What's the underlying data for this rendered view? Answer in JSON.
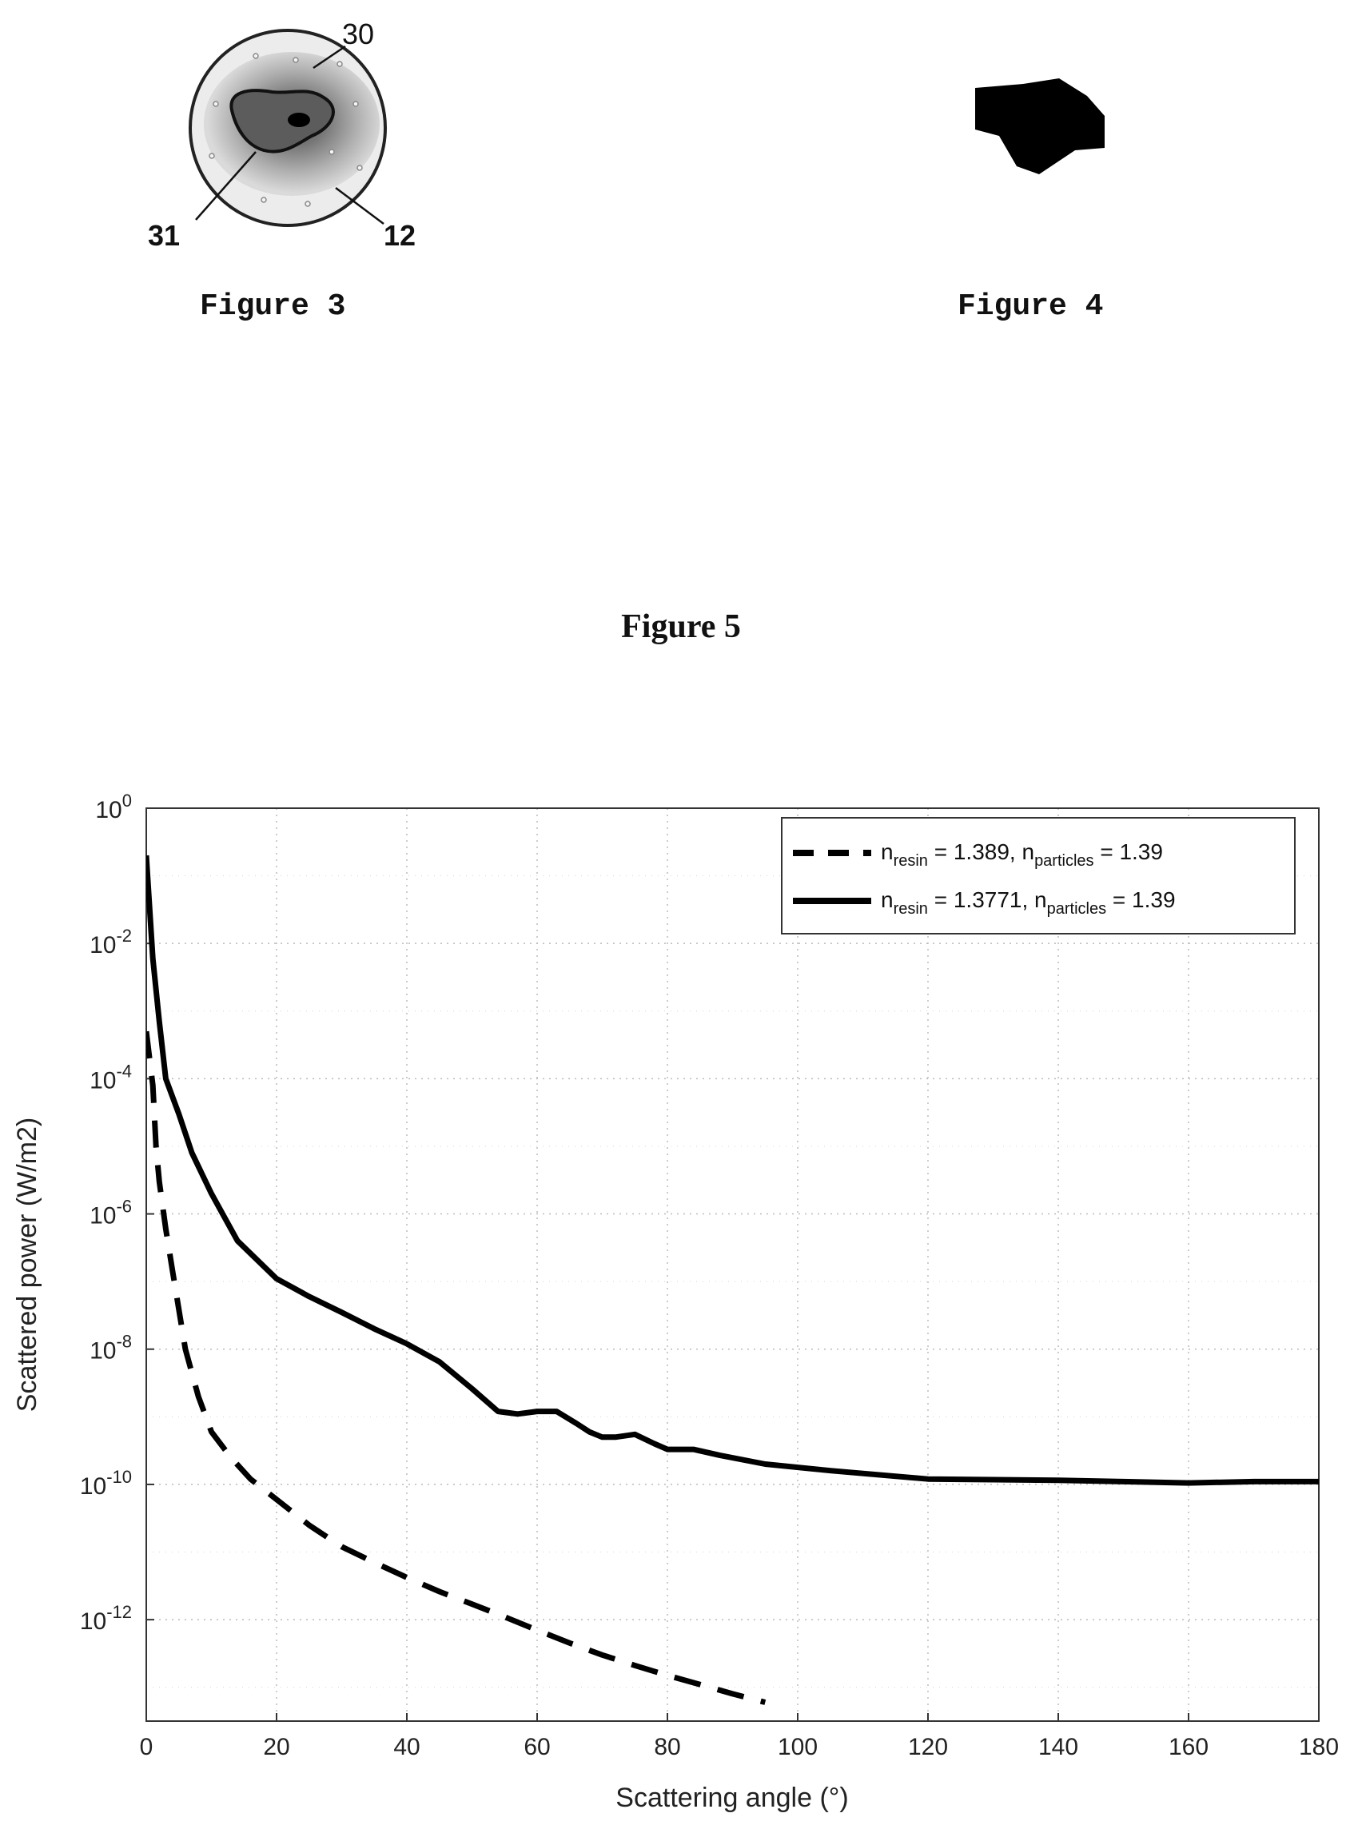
{
  "figure3": {
    "caption": "Figure 3",
    "labels": {
      "ref_30": "30",
      "ref_31": "31",
      "ref_12": "12"
    }
  },
  "figure4": {
    "caption": "Figure 4"
  },
  "figure5": {
    "title": "Figure 5",
    "legend": [
      {
        "base1": "n",
        "sub1": "resin",
        "mid": " = 1.389, ",
        "base2": "n",
        "sub2": "particles",
        "tail": " = 1.39",
        "style": "dashed"
      },
      {
        "base1": "n",
        "sub1": "resin",
        "mid": " = 1.3771, ",
        "base2": "n",
        "sub2": "particles",
        "tail": " = 1.39",
        "style": "solid"
      }
    ]
  },
  "chart_data": {
    "type": "line",
    "title": "",
    "xlabel": "Scattering angle (°)",
    "ylabel": "Scattered power (W/m2)",
    "xlim": [
      0,
      180
    ],
    "ylim_log10": [
      -13.5,
      0
    ],
    "yscale": "log",
    "grid": true,
    "legend_position": "top-right",
    "x_ticks": [
      "0",
      "20",
      "40",
      "60",
      "80",
      "100",
      "120",
      "140",
      "160",
      "180"
    ],
    "y_ticks": [
      {
        "base": "10",
        "exp": "0"
      },
      {
        "base": "10",
        "exp": "-2"
      },
      {
        "base": "10",
        "exp": "-4"
      },
      {
        "base": "10",
        "exp": "-6"
      },
      {
        "base": "10",
        "exp": "-8"
      },
      {
        "base": "10",
        "exp": "-10"
      },
      {
        "base": "10",
        "exp": "-12"
      }
    ],
    "series": [
      {
        "name": "n_resin = 1.389, n_particles = 1.39",
        "style": "dashed",
        "x": [
          0,
          0.5,
          1,
          1.5,
          2,
          3,
          4,
          6,
          8,
          10,
          13,
          16,
          20,
          25,
          30,
          35,
          40,
          45,
          50,
          55,
          60,
          65,
          70,
          75,
          80,
          85,
          90,
          95
        ],
        "y": [
          0.0005,
          0.0002,
          8e-05,
          1e-05,
          3e-06,
          6e-07,
          1.5e-07,
          1e-08,
          2e-09,
          6e-10,
          2.5e-10,
          1.2e-10,
          6e-11,
          2.5e-11,
          1.2e-11,
          7e-12,
          4.2e-12,
          2.6e-12,
          1.7e-12,
          1.1e-12,
          7e-13,
          4.5e-13,
          3e-13,
          2.1e-13,
          1.5e-13,
          1.1e-13,
          8e-14,
          6e-14
        ]
      },
      {
        "name": "n_resin = 1.3771, n_particles = 1.39",
        "style": "solid",
        "x": [
          0,
          1,
          2,
          3,
          5,
          7,
          10,
          14,
          20,
          25,
          30,
          35,
          40,
          45,
          50,
          54,
          57,
          60,
          63,
          66,
          68,
          70,
          72,
          75,
          78,
          80,
          84,
          88,
          95,
          105,
          120,
          140,
          150,
          160,
          170,
          180
        ],
        "y": [
          0.2,
          0.006,
          0.0007,
          0.0001,
          3e-05,
          8e-06,
          2e-06,
          4e-07,
          1.1e-07,
          6e-08,
          3.5e-08,
          2e-08,
          1.2e-08,
          6.5e-09,
          2.6e-09,
          1.2e-09,
          1.1e-09,
          1.2e-09,
          1.2e-09,
          8e-10,
          6e-10,
          5e-10,
          5e-10,
          5.5e-10,
          4e-10,
          3.3e-10,
          3.3e-10,
          2.7e-10,
          2e-10,
          1.6e-10,
          1.2e-10,
          1.15e-10,
          1.1e-10,
          1.05e-10,
          1.1e-10,
          1.1e-10
        ]
      }
    ]
  }
}
